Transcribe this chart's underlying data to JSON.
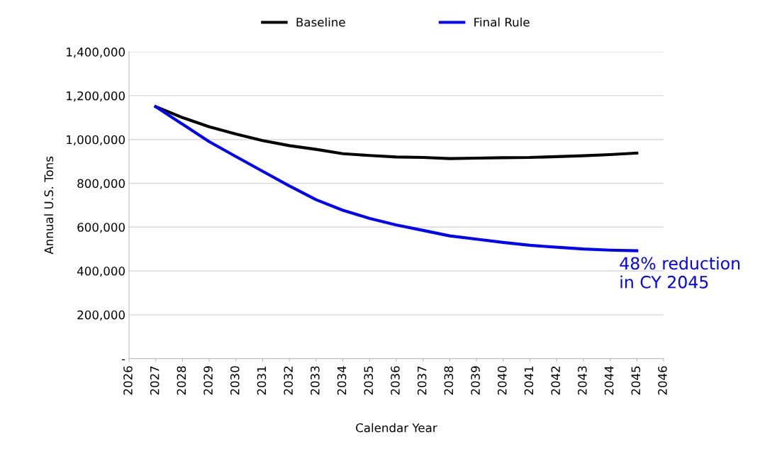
{
  "chart_data": {
    "type": "line",
    "xlabel": "Calendar Year",
    "ylabel": "Annual U.S. Tons",
    "x": [
      2027,
      2028,
      2029,
      2030,
      2031,
      2032,
      2033,
      2034,
      2035,
      2036,
      2037,
      2038,
      2039,
      2040,
      2041,
      2042,
      2043,
      2044,
      2045
    ],
    "series": [
      {
        "name": "Baseline",
        "color": "#000000",
        "values": [
          1150000,
          1100000,
          1058000,
          1025000,
          995000,
          972000,
          955000,
          935000,
          927000,
          920000,
          918000,
          913000,
          915000,
          917000,
          918000,
          922000,
          926000,
          931000,
          938000
        ]
      },
      {
        "name": "Final Rule",
        "color": "#0000ff",
        "values": [
          1150000,
          1070000,
          990000,
          922000,
          855000,
          788000,
          725000,
          677000,
          640000,
          610000,
          585000,
          560000,
          545000,
          530000,
          517000,
          508000,
          500000,
          495000,
          492000
        ]
      }
    ],
    "xlim": [
      2026,
      2046
    ],
    "xticks": [
      2026,
      2027,
      2028,
      2029,
      2030,
      2031,
      2032,
      2033,
      2034,
      2035,
      2036,
      2037,
      2038,
      2039,
      2040,
      2041,
      2042,
      2043,
      2044,
      2045,
      2046
    ],
    "ylim": [
      0,
      1400000
    ],
    "yticks": [
      {
        "value": 0,
        "label": "-"
      },
      {
        "value": 200000,
        "label": "200,000"
      },
      {
        "value": 400000,
        "label": "400,000"
      },
      {
        "value": 600000,
        "label": "600,000"
      },
      {
        "value": 800000,
        "label": "800,000"
      },
      {
        "value": 1000000,
        "label": "1,000,000"
      },
      {
        "value": 1200000,
        "label": "1,200,000"
      },
      {
        "value": 1400000,
        "label": "1,400,000"
      }
    ],
    "grid": "y",
    "legend": "top",
    "marker": "none",
    "line_style": "solid",
    "annotations": [
      {
        "text": "48% reduction\nin CY 2045",
        "x": 2045,
        "y": 492000
      }
    ]
  }
}
